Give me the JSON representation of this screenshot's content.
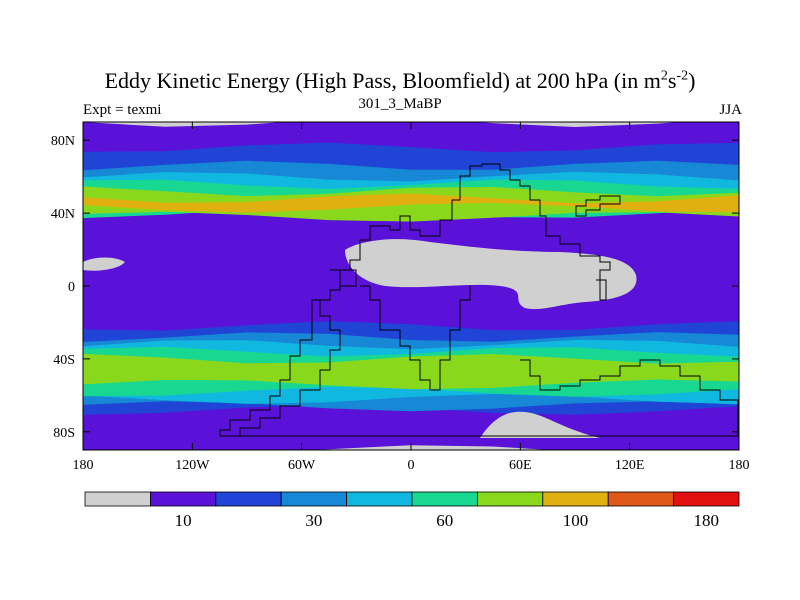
{
  "chart_data": {
    "type": "heatmap",
    "title_main": "Eddy Kinetic Energy (High Pass, Bloomfield) at 200 hPa (in m",
    "title_unit_m_exp": "2",
    "title_unit_s": "s",
    "title_unit_s_exp": "-2",
    "title_close": ")",
    "subtitle": "301_3_MaBP",
    "left_label": "Expt = texmi",
    "right_label": "JJA",
    "x_ticks": [
      {
        "value": -180,
        "label": "180"
      },
      {
        "value": -120,
        "label": "120W"
      },
      {
        "value": -60,
        "label": "60W"
      },
      {
        "value": 0,
        "label": "0"
      },
      {
        "value": 60,
        "label": "60E"
      },
      {
        "value": 120,
        "label": "120E"
      },
      {
        "value": 180,
        "label": "180"
      }
    ],
    "y_ticks": [
      {
        "value": 80,
        "label": "80N"
      },
      {
        "value": 40,
        "label": "40N"
      },
      {
        "value": 0,
        "label": "0"
      },
      {
        "value": -40,
        "label": "40S"
      },
      {
        "value": -80,
        "label": "80S"
      }
    ],
    "xlim": [
      -180,
      180
    ],
    "ylim": [
      -90,
      90
    ],
    "colorbar": {
      "colors": [
        "#d0d0d0",
        "#5a12d8",
        "#1f44d6",
        "#1688d6",
        "#10b8e0",
        "#18d891",
        "#8ad81c",
        "#e0b010",
        "#e05818",
        "#e01010"
      ],
      "tick_labels": [
        {
          "index": 1,
          "label": "10"
        },
        {
          "index": 3,
          "label": "30"
        },
        {
          "index": 5,
          "label": "60"
        },
        {
          "index": 7,
          "label": "100"
        },
        {
          "index": 9,
          "label": "180"
        }
      ]
    },
    "bands": [
      {
        "level": 1,
        "lat0": 90,
        "lat1": -90
      },
      {
        "level": 2,
        "lat0": 76,
        "lat1": 62
      },
      {
        "level": 3,
        "lat0": 66,
        "lat1": 54
      },
      {
        "level": 4,
        "lat0": 60,
        "lat1": 46
      },
      {
        "level": 5,
        "lat0": 56,
        "lat1": 40
      },
      {
        "level": 6,
        "lat0": 52,
        "lat1": 38
      },
      {
        "level": 7,
        "lat0": 48,
        "lat1": 43
      },
      {
        "level": 2,
        "lat0": -22,
        "lat1": -68
      },
      {
        "level": 3,
        "lat0": -28,
        "lat1": -66
      },
      {
        "level": 4,
        "lat0": -32,
        "lat1": -62
      },
      {
        "level": 5,
        "lat0": -36,
        "lat1": -58
      },
      {
        "level": 6,
        "lat0": -40,
        "lat1": -54
      }
    ]
  }
}
